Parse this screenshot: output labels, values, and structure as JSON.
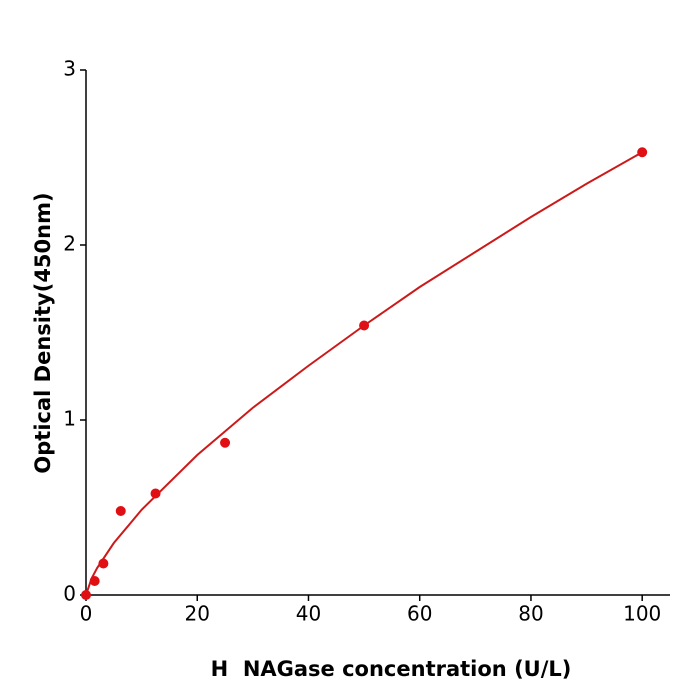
{
  "chart_data": {
    "type": "scatter",
    "x_label": "H  NAGase concentration (U/L)",
    "y_label": "Optical Density(450nm)",
    "x": [
      0,
      1.56,
      3.125,
      6.25,
      12.5,
      25,
      50,
      100
    ],
    "values": [
      0.0,
      0.08,
      0.18,
      0.48,
      0.58,
      0.87,
      1.54,
      2.53
    ],
    "color": "#e00f14",
    "fit": {
      "color": "#cc1a1a",
      "x": [
        0,
        1,
        2,
        5,
        10,
        20,
        30,
        40,
        50,
        60,
        70,
        80,
        90,
        100
      ],
      "values": [
        0,
        0.094,
        0.154,
        0.297,
        0.487,
        0.8,
        1.07,
        1.31,
        1.54,
        1.76,
        1.96,
        2.16,
        2.35,
        2.53
      ]
    },
    "xlim": [
      0,
      105
    ],
    "ylim": [
      0,
      3
    ],
    "xticks": [
      0,
      20,
      40,
      60,
      80,
      100
    ],
    "yticks": [
      0,
      1,
      2,
      3
    ],
    "grid": false
  }
}
